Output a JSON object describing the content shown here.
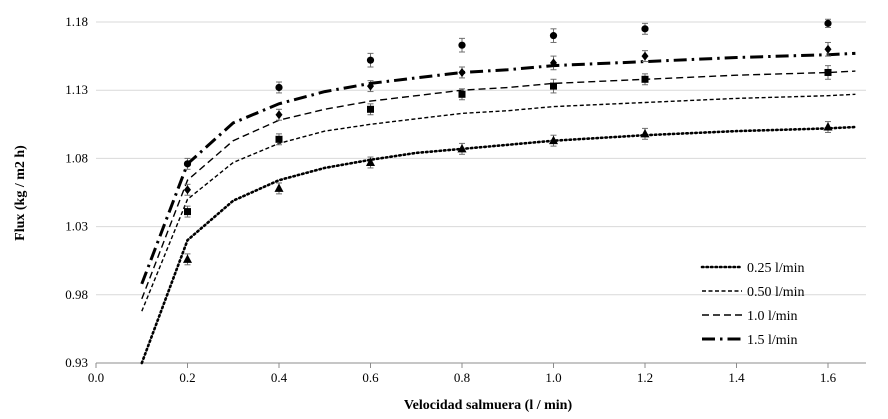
{
  "chart_data": {
    "type": "scatter",
    "xlabel": "Velocidad salmuera (l / min)",
    "ylabel": "Flux (kg / m2 h)",
    "xlim": [
      0.0,
      1.65
    ],
    "ylim": [
      0.93,
      1.18
    ],
    "x_ticks": [
      "0.0",
      "0.2",
      "0.4",
      "0.6",
      "0.8",
      "1.0",
      "1.2",
      "1.4",
      "1.6"
    ],
    "y_ticks": [
      "0.93",
      "0.98",
      "1.03",
      "1.08",
      "1.13",
      "1.18"
    ],
    "grid": "horizontal",
    "legend_position": "bottom-right",
    "x": [
      0.2,
      0.4,
      0.6,
      0.8,
      1.0,
      1.2,
      1.6
    ],
    "series": [
      {
        "name": "0.25 l/min",
        "marker": "triangle",
        "line_style": "dotted",
        "values": [
          1.006,
          1.058,
          1.077,
          1.087,
          1.093,
          1.098,
          1.103
        ],
        "error": [
          0.004,
          0.004,
          0.004,
          0.004,
          0.004,
          0.004,
          0.004
        ],
        "fit_curve": [
          [
            0.1,
            0.93
          ],
          [
            0.2,
            1.02
          ],
          [
            0.3,
            1.049
          ],
          [
            0.4,
            1.064
          ],
          [
            0.5,
            1.073
          ],
          [
            0.6,
            1.079
          ],
          [
            0.7,
            1.084
          ],
          [
            0.8,
            1.087
          ],
          [
            0.9,
            1.09
          ],
          [
            1.0,
            1.093
          ],
          [
            1.2,
            1.097
          ],
          [
            1.4,
            1.1
          ],
          [
            1.6,
            1.102
          ],
          [
            1.66,
            1.103
          ]
        ]
      },
      {
        "name": "0.50 l/min",
        "marker": "square",
        "line_style": "short-dash",
        "values": [
          1.041,
          1.094,
          1.116,
          1.127,
          1.133,
          1.138,
          1.143
        ],
        "error": [
          0.004,
          0.004,
          0.004,
          0.004,
          0.005,
          0.004,
          0.005
        ],
        "fit_curve": [
          [
            0.1,
            0.968
          ],
          [
            0.2,
            1.05
          ],
          [
            0.3,
            1.077
          ],
          [
            0.4,
            1.091
          ],
          [
            0.5,
            1.1
          ],
          [
            0.6,
            1.105
          ],
          [
            0.7,
            1.109
          ],
          [
            0.8,
            1.113
          ],
          [
            0.9,
            1.115
          ],
          [
            1.0,
            1.118
          ],
          [
            1.2,
            1.121
          ],
          [
            1.4,
            1.124
          ],
          [
            1.6,
            1.126
          ],
          [
            1.66,
            1.127
          ]
        ]
      },
      {
        "name": "1.0 l/min",
        "marker": "diamond",
        "line_style": "dash",
        "values": [
          1.057,
          1.112,
          1.133,
          1.143,
          1.15,
          1.155,
          1.16
        ],
        "error": [
          0.004,
          0.004,
          0.004,
          0.004,
          0.005,
          0.004,
          0.005
        ],
        "fit_curve": [
          [
            0.1,
            0.977
          ],
          [
            0.2,
            1.064
          ],
          [
            0.3,
            1.093
          ],
          [
            0.4,
            1.108
          ],
          [
            0.5,
            1.116
          ],
          [
            0.6,
            1.122
          ],
          [
            0.7,
            1.126
          ],
          [
            0.8,
            1.13
          ],
          [
            0.9,
            1.132
          ],
          [
            1.0,
            1.135
          ],
          [
            1.2,
            1.138
          ],
          [
            1.4,
            1.141
          ],
          [
            1.6,
            1.143
          ],
          [
            1.66,
            1.144
          ]
        ]
      },
      {
        "name": "1.5 l/min",
        "marker": "circle",
        "line_style": "dash-dot",
        "values": [
          1.076,
          1.132,
          1.152,
          1.163,
          1.17,
          1.175,
          1.179
        ],
        "error": [
          0.004,
          0.004,
          0.005,
          0.005,
          0.005,
          0.004,
          0.003
        ],
        "fit_curve": [
          [
            0.1,
            0.988
          ],
          [
            0.2,
            1.076
          ],
          [
            0.3,
            1.106
          ],
          [
            0.4,
            1.12
          ],
          [
            0.5,
            1.129
          ],
          [
            0.6,
            1.135
          ],
          [
            0.7,
            1.139
          ],
          [
            0.8,
            1.143
          ],
          [
            0.9,
            1.145
          ],
          [
            1.0,
            1.148
          ],
          [
            1.2,
            1.151
          ],
          [
            1.4,
            1.154
          ],
          [
            1.6,
            1.156
          ],
          [
            1.66,
            1.157
          ]
        ]
      }
    ]
  }
}
